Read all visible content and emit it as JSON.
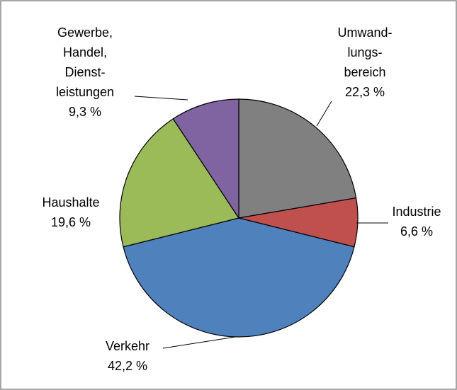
{
  "chart_data": {
    "type": "pie",
    "categories": [
      [
        "Umwand-",
        "lungs-",
        "bereich"
      ],
      [
        "Industrie"
      ],
      [
        "Verkehr"
      ],
      [
        "Haushalte"
      ],
      [
        "Gewerbe,",
        "Handel,",
        "Dienst-",
        "leistungen"
      ]
    ],
    "values": [
      22.3,
      6.6,
      42.2,
      19.6,
      9.3
    ],
    "value_labels": [
      "22,3 %",
      "6,6 %",
      "42,2 %",
      "19,6 %",
      "9,3 %"
    ],
    "colors": [
      "#808080",
      "#c0504d",
      "#4f81bd",
      "#9bbb59",
      "#8064a2"
    ]
  }
}
